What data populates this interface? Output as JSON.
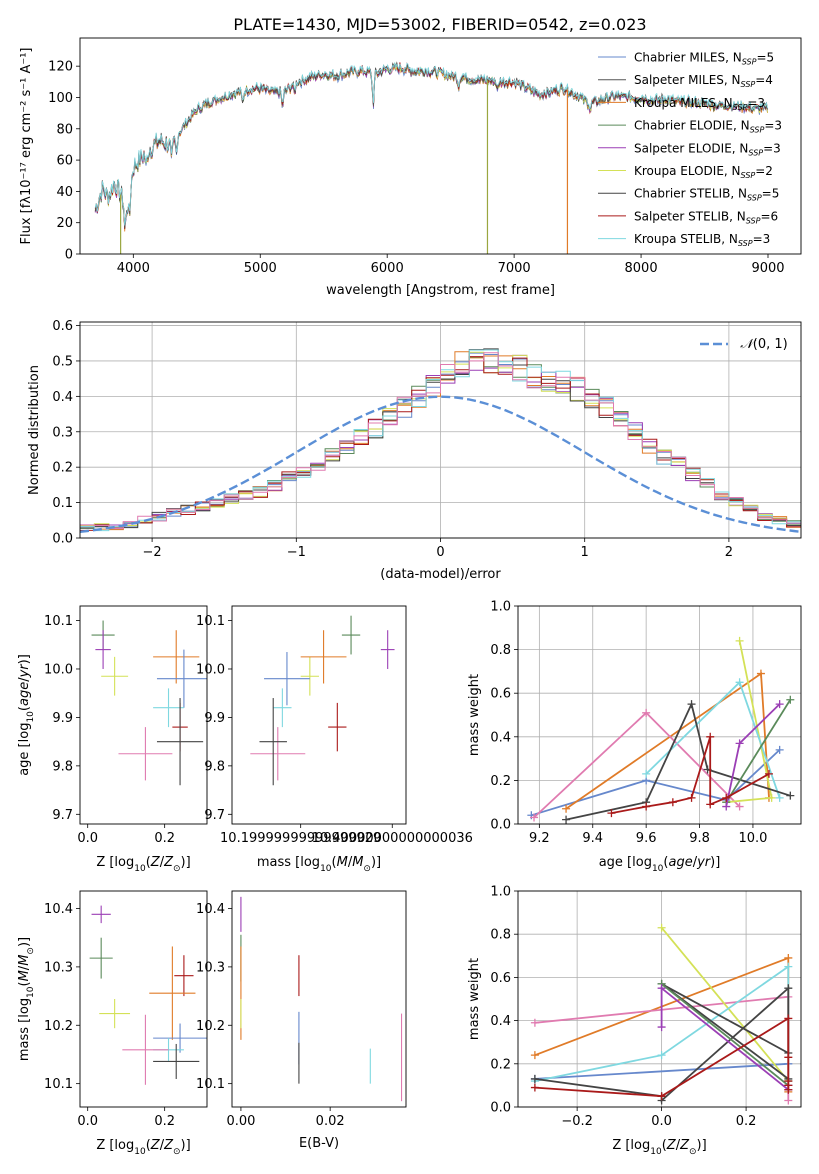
{
  "figure": {
    "title": "PLATE=1430, MJD=53002, FIBERID=0542, z=0.023"
  },
  "chart_data": [
    {
      "id": "spectrum",
      "type": "line",
      "xlabel": "wavelength [Angstrom, rest frame]",
      "ylabel": "Flux [fλ10⁻¹⁷ erg cm⁻² s⁻¹ A⁻¹]",
      "xlim": [
        3580,
        9260
      ],
      "ylim": [
        0,
        138
      ],
      "xticks": [
        4000,
        5000,
        6000,
        7000,
        8000,
        9000
      ],
      "yticks": [
        0,
        20,
        40,
        60,
        80,
        100,
        120
      ],
      "grid": false,
      "legend_position": "top-right",
      "continuum": {
        "x": [
          3700,
          3760,
          3800,
          3850,
          3900,
          3950,
          4000,
          4100,
          4200,
          4300,
          4400,
          4500,
          4600,
          4700,
          4800,
          4900,
          5000,
          5100,
          5200,
          5300,
          5400,
          5500,
          5600,
          5700,
          5800,
          5900,
          6000,
          6100,
          6200,
          6300,
          6400,
          6500,
          6600,
          6700,
          6800,
          6900,
          7000,
          7100,
          7200,
          7300,
          7400,
          7500,
          7600,
          7700,
          7800,
          7900,
          8000,
          8100,
          8200,
          8300,
          8400,
          8500,
          8600,
          8700,
          8800,
          8900,
          9000
        ],
        "y": [
          28,
          42,
          36,
          45,
          38,
          30,
          55,
          65,
          72,
          70,
          82,
          92,
          97,
          100,
          103,
          105,
          106,
          103,
          104,
          110,
          113,
          115,
          114,
          116,
          117,
          115,
          118,
          119,
          117,
          117,
          116,
          114,
          113,
          111,
          111,
          110,
          110,
          106,
          102,
          104,
          106,
          101,
          96,
          99,
          101,
          100,
          100,
          98,
          99,
          97,
          97,
          96,
          95,
          95,
          94,
          93,
          93
        ]
      },
      "series": [
        {
          "name": "Chabrier MILES, N_SSP=5",
          "color": "#6688cc"
        },
        {
          "name": "Salpeter MILES, N_SSP=4",
          "color": "#555555"
        },
        {
          "name": "Kroupa MILES, N_SSP=3",
          "color": "#e07b28"
        },
        {
          "name": "Chabrier ELODIE, N_SSP=3",
          "color": "#5a8a5a"
        },
        {
          "name": "Salpeter ELODIE, N_SSP=3",
          "color": "#9b3fb5"
        },
        {
          "name": "Kroupa ELODIE, N_SSP=2",
          "color": "#d4e157"
        },
        {
          "name": "Chabrier STELIB, N_SSP=5",
          "color": "#444444"
        },
        {
          "name": "Salpeter STELIB, N_SSP=6",
          "color": "#aa1a1a"
        },
        {
          "name": "Kroupa STELIB, N_SSP=3",
          "color": "#7fd8e0"
        }
      ],
      "legend_labels": [
        {
          "prefix": "Chabrier MILES, N",
          "sub": "SSP",
          "suffix": "=5"
        },
        {
          "prefix": "Salpeter MILES, N",
          "sub": "SSP",
          "suffix": "=4"
        },
        {
          "prefix": "Kroupa MILES, N",
          "sub": "SSP",
          "suffix": "=3"
        },
        {
          "prefix": "Chabrier ELODIE, N",
          "sub": "SSP",
          "suffix": "=3"
        },
        {
          "prefix": "Salpeter ELODIE, N",
          "sub": "SSP",
          "suffix": "=3"
        },
        {
          "prefix": "Kroupa ELODIE, N",
          "sub": "SSP",
          "suffix": "=2"
        },
        {
          "prefix": "Chabrier STELIB, N",
          "sub": "SSP",
          "suffix": "=5"
        },
        {
          "prefix": "Salpeter STELIB, N",
          "sub": "SSP",
          "suffix": "=6"
        },
        {
          "prefix": "Kroupa STELIB, N",
          "sub": "SSP",
          "suffix": "=3"
        }
      ],
      "dropouts": [
        {
          "x": 3900,
          "color": "#9aa640"
        },
        {
          "x": 6790,
          "color": "#9aa640"
        },
        {
          "x": 7420,
          "color": "#e07b28"
        }
      ]
    },
    {
      "id": "residual-hist",
      "type": "histogram",
      "xlabel": "(data-model)/error",
      "ylabel": "Normed distribution",
      "xlim": [
        -2.5,
        2.5
      ],
      "ylim": [
        0,
        0.61
      ],
      "xticks": [
        -2,
        -1,
        0,
        1,
        2
      ],
      "yticks": [
        0.0,
        0.1,
        0.2,
        0.3,
        0.4,
        0.5,
        0.6
      ],
      "grid": true,
      "legend_position": "top-right",
      "legend": "N(0,1)",
      "bin_width": 0.1,
      "bin_start": -2.5,
      "base_values": [
        0.03,
        0.03,
        0.03,
        0.04,
        0.05,
        0.06,
        0.07,
        0.08,
        0.09,
        0.1,
        0.11,
        0.12,
        0.13,
        0.15,
        0.17,
        0.19,
        0.21,
        0.23,
        0.26,
        0.29,
        0.31,
        0.34,
        0.37,
        0.4,
        0.43,
        0.46,
        0.49,
        0.51,
        0.5,
        0.5,
        0.48,
        0.46,
        0.45,
        0.44,
        0.42,
        0.4,
        0.37,
        0.34,
        0.3,
        0.26,
        0.23,
        0.21,
        0.18,
        0.15,
        0.12,
        0.1,
        0.08,
        0.06,
        0.05,
        0.04
      ],
      "gaussian_color": "#5b8fd6"
    },
    {
      "id": "Z-age",
      "type": "errorbar",
      "xlabel": "Z [log10(Z/Z⊙)]",
      "ylabel": "age [log10(age/yr)]",
      "xlim": [
        -0.02,
        0.31
      ],
      "ylim": [
        9.68,
        10.13
      ],
      "xticks": [
        0.0,
        0.2
      ],
      "yticks": [
        9.7,
        9.8,
        9.9,
        10.0,
        10.1
      ],
      "points": [
        {
          "x": 0.04,
          "y": 10.07,
          "xerr": 0.03,
          "yerr": 0.03,
          "color": "#5a8a5a"
        },
        {
          "x": 0.04,
          "y": 10.04,
          "xerr": 0.02,
          "yerr": 0.04,
          "color": "#9b3fb5"
        },
        {
          "x": 0.07,
          "y": 9.985,
          "xerr": 0.035,
          "yerr": 0.04,
          "color": "#d4e157"
        },
        {
          "x": 0.23,
          "y": 10.025,
          "xerr": 0.06,
          "yerr": 0.055,
          "color": "#e07b28"
        },
        {
          "x": 0.25,
          "y": 9.98,
          "xerr": 0.07,
          "yerr": 0.06,
          "color": "#6688cc"
        },
        {
          "x": 0.21,
          "y": 9.92,
          "xerr": 0.04,
          "yerr": 0.04,
          "color": "#7fd8e0"
        },
        {
          "x": 0.24,
          "y": 9.88,
          "xerr": 0.02,
          "yerr": 0.05,
          "color": "#aa1a1a"
        },
        {
          "x": 0.15,
          "y": 9.825,
          "xerr": 0.07,
          "yerr": 0.055,
          "color": "#e07bb0"
        },
        {
          "x": 0.24,
          "y": 9.85,
          "xerr": 0.06,
          "yerr": 0.09,
          "color": "#444444"
        }
      ]
    },
    {
      "id": "mass-age",
      "type": "errorbar",
      "xlabel": "mass [log10(M/M⊙)]",
      "ylabel": "",
      "xlim": [
        10.05,
        10.43
      ],
      "ylim": [
        9.68,
        10.13
      ],
      "xticks": [
        10.2,
        10.4
      ],
      "yticks": [
        9.7,
        9.8,
        9.9,
        10.0,
        10.1
      ],
      "points": [
        {
          "x": 10.31,
          "y": 10.07,
          "xerr": 0.02,
          "yerr": 0.04,
          "color": "#5a8a5a"
        },
        {
          "x": 10.39,
          "y": 10.04,
          "xerr": 0.015,
          "yerr": 0.04,
          "color": "#9b3fb5"
        },
        {
          "x": 10.22,
          "y": 9.985,
          "xerr": 0.02,
          "yerr": 0.04,
          "color": "#d4e157"
        },
        {
          "x": 10.25,
          "y": 10.025,
          "xerr": 0.05,
          "yerr": 0.055,
          "color": "#e07b28"
        },
        {
          "x": 10.17,
          "y": 9.98,
          "xerr": 0.05,
          "yerr": 0.055,
          "color": "#6688cc"
        },
        {
          "x": 10.16,
          "y": 9.92,
          "xerr": 0.02,
          "yerr": 0.04,
          "color": "#7fd8e0"
        },
        {
          "x": 10.28,
          "y": 9.88,
          "xerr": 0.02,
          "yerr": 0.05,
          "color": "#aa1a1a"
        },
        {
          "x": 10.15,
          "y": 9.825,
          "xerr": 0.06,
          "yerr": 0.055,
          "color": "#e07bb0"
        },
        {
          "x": 10.14,
          "y": 9.85,
          "xerr": 0.03,
          "yerr": 0.09,
          "color": "#444444"
        }
      ]
    },
    {
      "id": "age-weight",
      "type": "line",
      "xlabel": "age [log10(age/yr)]",
      "ylabel": "mass weight",
      "xlim": [
        9.12,
        10.18
      ],
      "ylim": [
        0,
        1.0
      ],
      "xticks": [
        9.2,
        9.4,
        9.6,
        9.8,
        10.0
      ],
      "yticks": [
        0.0,
        0.2,
        0.4,
        0.6,
        0.8,
        1.0
      ],
      "grid": true,
      "series": [
        {
          "color": "#6688cc",
          "x": [
            9.17,
            9.6,
            9.9,
            10.1
          ],
          "y": [
            0.04,
            0.2,
            0.11,
            0.34
          ]
        },
        {
          "color": "#e07b28",
          "x": [
            9.3,
            10.03,
            10.06
          ],
          "y": [
            0.07,
            0.69,
            0.12
          ]
        },
        {
          "color": "#e07bb0",
          "x": [
            9.18,
            9.6,
            9.95
          ],
          "y": [
            0.03,
            0.51,
            0.08
          ]
        },
        {
          "color": "#d4e157",
          "x": [
            9.95,
            10.07,
            9.9
          ],
          "y": [
            0.84,
            0.12,
            0.1
          ]
        },
        {
          "color": "#7fd8e0",
          "x": [
            9.6,
            9.95,
            10.1
          ],
          "y": [
            0.23,
            0.65,
            0.12
          ]
        },
        {
          "color": "#444444",
          "x": [
            9.3,
            9.6,
            9.77,
            9.83,
            10.14
          ],
          "y": [
            0.02,
            0.1,
            0.55,
            0.25,
            0.13
          ]
        },
        {
          "color": "#5a8a5a",
          "x": [
            9.9,
            10.14
          ],
          "y": [
            0.1,
            0.57
          ]
        },
        {
          "color": "#9b3fb5",
          "x": [
            9.9,
            9.95,
            10.1
          ],
          "y": [
            0.08,
            0.37,
            0.55
          ]
        },
        {
          "color": "#aa1a1a",
          "x": [
            9.47,
            9.6,
            9.7,
            9.77,
            9.84,
            9.84,
            9.9,
            10.06
          ],
          "y": [
            0.05,
            0.08,
            0.1,
            0.12,
            0.4,
            0.09,
            0.12,
            0.23
          ]
        }
      ]
    },
    {
      "id": "Z-mass",
      "type": "errorbar",
      "xlabel": "Z [log10(Z/Z⊙)]",
      "ylabel": "mass [log10(M/M⊙)]",
      "xlim": [
        -0.02,
        0.31
      ],
      "ylim": [
        10.06,
        10.43
      ],
      "xticks": [
        0.0,
        0.2
      ],
      "yticks": [
        10.1,
        10.2,
        10.3,
        10.4
      ],
      "points": [
        {
          "x": 0.035,
          "y": 10.39,
          "xerr": 0.025,
          "yerr": 0.015,
          "color": "#9b3fb5"
        },
        {
          "x": 0.035,
          "y": 10.315,
          "xerr": 0.03,
          "yerr": 0.035,
          "color": "#5a8a5a"
        },
        {
          "x": 0.07,
          "y": 10.22,
          "xerr": 0.04,
          "yerr": 0.025,
          "color": "#d4e157"
        },
        {
          "x": 0.25,
          "y": 10.285,
          "xerr": 0.025,
          "yerr": 0.035,
          "color": "#aa1a1a"
        },
        {
          "x": 0.22,
          "y": 10.255,
          "xerr": 0.06,
          "yerr": 0.08,
          "color": "#e07b28"
        },
        {
          "x": 0.24,
          "y": 10.178,
          "xerr": 0.07,
          "yerr": 0.025,
          "color": "#6688cc"
        },
        {
          "x": 0.21,
          "y": 10.158,
          "xerr": 0.04,
          "yerr": 0.02,
          "color": "#7fd8e0"
        },
        {
          "x": 0.15,
          "y": 10.158,
          "xerr": 0.06,
          "yerr": 0.06,
          "color": "#e07bb0"
        },
        {
          "x": 0.23,
          "y": 10.138,
          "xerr": 0.06,
          "yerr": 0.03,
          "color": "#444444"
        }
      ]
    },
    {
      "id": "ebv-mass",
      "type": "errorbar",
      "xlabel": "E(B-V)",
      "ylabel": "",
      "xlim": [
        -0.002,
        0.037
      ],
      "ylim": [
        10.06,
        10.43
      ],
      "xticks": [
        0.0,
        0.02
      ],
      "yticks": [
        10.1,
        10.2,
        10.3,
        10.4
      ],
      "points": [
        {
          "x": 0.0,
          "y": 10.39,
          "xerr": 0,
          "yerr": 0.03,
          "color": "#9b3fb5"
        },
        {
          "x": 0.0,
          "y": 10.315,
          "xerr": 0,
          "yerr": 0.04,
          "color": "#5a8a5a"
        },
        {
          "x": 0.0,
          "y": 10.255,
          "xerr": 0,
          "yerr": 0.08,
          "color": "#e07b28"
        },
        {
          "x": 0.0,
          "y": 10.22,
          "xerr": 0,
          "yerr": 0.025,
          "color": "#d4e157"
        },
        {
          "x": 0.013,
          "y": 10.285,
          "xerr": 0,
          "yerr": 0.035,
          "color": "#aa1a1a"
        },
        {
          "x": 0.013,
          "y": 10.178,
          "xerr": 0,
          "yerr": 0.045,
          "color": "#6688cc"
        },
        {
          "x": 0.013,
          "y": 10.135,
          "xerr": 0,
          "yerr": 0.035,
          "color": "#444444"
        },
        {
          "x": 0.029,
          "y": 10.13,
          "xerr": 0,
          "yerr": 0.03,
          "color": "#7fd8e0"
        },
        {
          "x": 0.036,
          "y": 10.145,
          "xerr": 0,
          "yerr": 0.075,
          "color": "#e07bb0"
        }
      ]
    },
    {
      "id": "Z-weight",
      "type": "line",
      "xlabel": "Z [log10(Z/Z⊙)]",
      "ylabel": "mass weight",
      "xlim": [
        -0.34,
        0.33
      ],
      "ylim": [
        0,
        1.0
      ],
      "xticks": [
        -0.2,
        0.0,
        0.2
      ],
      "yticks": [
        0.0,
        0.2,
        0.4,
        0.6,
        0.8,
        1.0
      ],
      "grid": true,
      "series": [
        {
          "color": "#6688cc",
          "x": [
            -0.3,
            0.3
          ],
          "y": [
            0.13,
            0.2
          ]
        },
        {
          "color": "#e07b28",
          "x": [
            -0.3,
            0.3,
            0.3
          ],
          "y": [
            0.24,
            0.69,
            0.07
          ]
        },
        {
          "color": "#e07bb0",
          "x": [
            -0.3,
            0.3,
            0.3
          ],
          "y": [
            0.39,
            0.51,
            0.03
          ]
        },
        {
          "color": "#d4e157",
          "x": [
            0.0,
            0.3
          ],
          "y": [
            0.83,
            0.12
          ]
        },
        {
          "color": "#7fd8e0",
          "x": [
            -0.3,
            0.0,
            0.3,
            0.3
          ],
          "y": [
            0.12,
            0.24,
            0.65,
            0.12
          ]
        },
        {
          "color": "#444444",
          "x": [
            -0.3,
            0.0,
            0.0,
            0.3,
            0.3,
            0.0,
            0.3
          ],
          "y": [
            0.13,
            0.05,
            0.03,
            0.55,
            0.25,
            0.57,
            0.13
          ]
        },
        {
          "color": "#5a8a5a",
          "x": [
            0.0,
            0.3
          ],
          "y": [
            0.57,
            0.1
          ]
        },
        {
          "color": "#9b3fb5",
          "x": [
            0.0,
            0.0,
            0.3,
            0.3
          ],
          "y": [
            0.37,
            0.55,
            0.08,
            0.1
          ]
        },
        {
          "color": "#aa1a1a",
          "x": [
            -0.3,
            0.0,
            0.3,
            0.3,
            0.3,
            0.3,
            0.3
          ],
          "y": [
            0.09,
            0.05,
            0.41,
            0.12,
            0.08,
            0.1,
            0.23
          ]
        }
      ]
    }
  ]
}
